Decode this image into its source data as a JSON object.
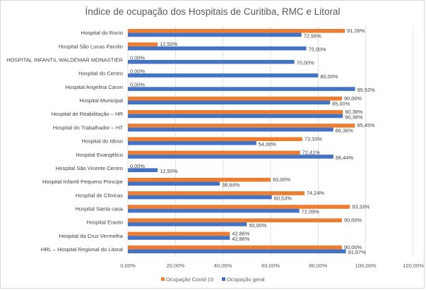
{
  "chart_data": {
    "type": "bar",
    "orientation": "horizontal",
    "title": "Índice de ocupação dos Hospitais de Curitiba, RMC e Litoral",
    "xlabel": "",
    "ylabel": "",
    "xlim": [
      0,
      1.2
    ],
    "ticks": [
      0,
      0.2,
      0.4,
      0.6,
      0.8,
      1.0,
      1.2
    ],
    "tick_labels": [
      "0,00%",
      "20,00%",
      "40,00%",
      "60,00%",
      "80,00%",
      "100,00%",
      "120,00%"
    ],
    "grid": true,
    "legend_position": "bottom",
    "categories": [
      "Hospital do Rocio",
      "Hospital São Lucas Parolin",
      "HOSPITAL INFANTIL WALDEMAR MONASTIER",
      "Hospital do Centro",
      "Hospital Angelina Caron",
      "Hospital Municipal",
      "Hospital de Reabilitação – HR",
      "Hospital do Trabalhador – HT",
      "Hospital do Idoso",
      "Hospital Evangélico",
      "Hospital São Vicente Centro",
      "Hospital Infantil Pequeno Principe",
      "Hospital de Clínicas",
      "Hospital Santa casa",
      "Hospital Erasto",
      "Hospital da Cruz Vermelha",
      "HRL – Hospital Regional do Litoral"
    ],
    "series": [
      {
        "name": "Ocupação Covid-19",
        "color": "#ED7D31",
        "values": [
          0.9126,
          0.125,
          0,
          0,
          0,
          0.9,
          0.9038,
          0.9545,
          0.7333,
          0.7241,
          0,
          0.6,
          0.7424,
          0.9333,
          0.9,
          0.4286,
          0.9
        ],
        "labels": [
          "91,26%",
          "12,50%",
          "0,00%",
          "0,00%",
          "0,00%",
          "90,00%",
          "90,38%",
          "95,45%",
          "73,33%",
          "72,41%",
          "0,00%",
          "60,00%",
          "74,24%",
          "93,33%",
          "90,00%",
          "42,86%",
          "90,00%"
        ]
      },
      {
        "name": "Ocupação geral",
        "color": "#4472C4",
        "values": [
          0.7299,
          0.75,
          0.7,
          0.8,
          0.9552,
          0.85,
          0.9038,
          0.8636,
          0.54,
          0.8644,
          0.125,
          0.3864,
          0.6053,
          0.7209,
          0.5,
          0.4286,
          0.9167
        ],
        "labels": [
          "72,99%",
          "75,00%",
          "70,00%",
          "80,00%",
          "95,52%",
          "85,00%",
          "90,38%",
          "86,36%",
          "54,00%",
          "86,44%",
          "12,50%",
          "38,64%",
          "60,53%",
          "72,09%",
          "50,00%",
          "42,86%",
          "91,67%"
        ]
      }
    ]
  }
}
